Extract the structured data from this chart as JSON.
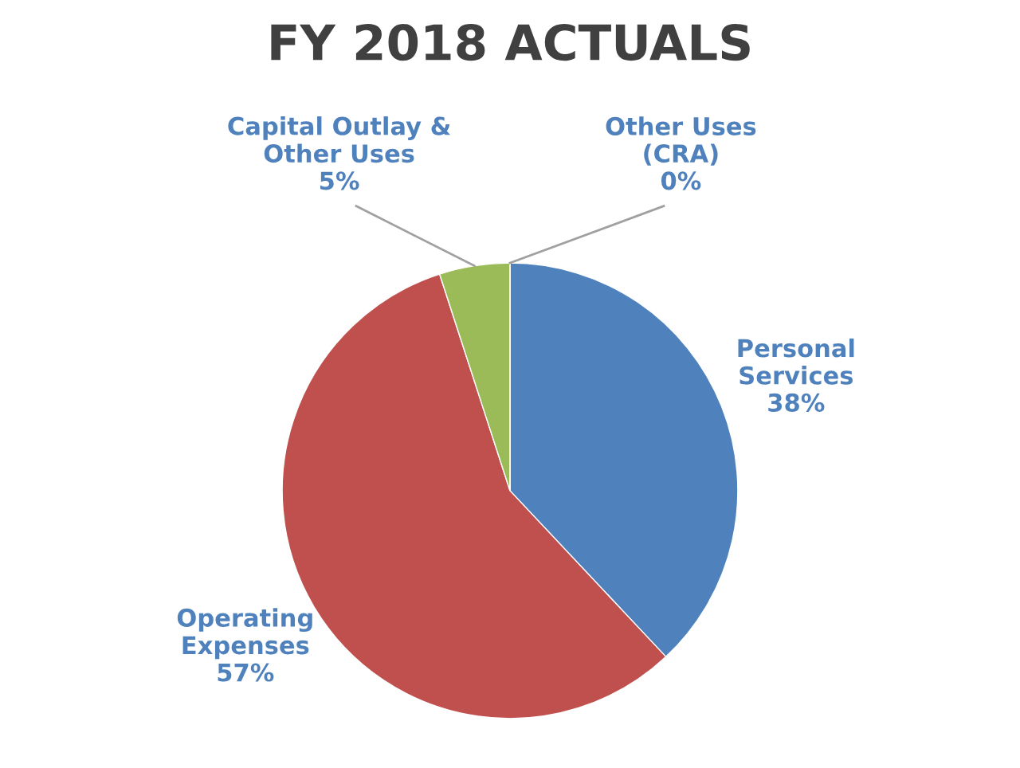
{
  "chart_data": {
    "type": "pie",
    "title": "FY 2018 ACTUALS",
    "categories": [
      "Personal\nServices\n38%",
      "Operating\nExpenses\n57%",
      "Capital Outlay &\nOther Uses\n5%",
      "Other Uses\n(CRA)\n0%"
    ],
    "values": [
      38,
      57,
      5,
      0
    ],
    "colors": [
      "#4f81bd",
      "#c0504d",
      "#9bbb59",
      "#8064a2"
    ]
  }
}
